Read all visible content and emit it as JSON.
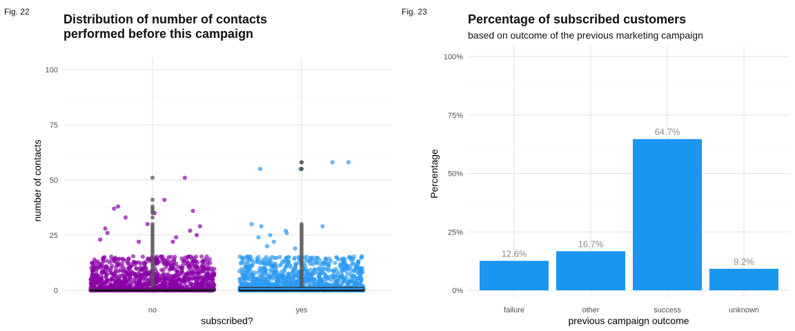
{
  "figures": [
    {
      "label": "Fig. 22",
      "title_line1": "Distribution of number of contacts",
      "title_line2": "performed before this campaign"
    },
    {
      "label": "Fig. 23",
      "title": "Percentage of subscribed customers",
      "subtitle": "based on outcome of the previous marketing campaign"
    }
  ],
  "colors": {
    "no": "#8a00a8",
    "yes": "#2b9af3",
    "bar": "#1896f0",
    "box_outline": "#333333",
    "outlier": "#555555"
  },
  "chart_data": [
    {
      "type": "scatter",
      "subtype": "jitter-with-boxplot",
      "xlabel": "subscribed?",
      "ylabel": "number of contacts",
      "categories": [
        "no",
        "yes"
      ],
      "ylim": [
        0,
        105
      ],
      "yticks": [
        0,
        25,
        50,
        75,
        100
      ],
      "grid": true,
      "series": [
        {
          "category": "no",
          "median": 0,
          "q1": 0,
          "q3": 0,
          "approx_max": 51,
          "notable_points": [
            51,
            41,
            38,
            37,
            36,
            35,
            33,
            30,
            29,
            28,
            27,
            26,
            25,
            24,
            23,
            22,
            22
          ]
        },
        {
          "category": "yes",
          "median": 0,
          "q1": 0,
          "q3": 1,
          "approx_max": 58,
          "notable_points": [
            58,
            58,
            55,
            55,
            30,
            29,
            29,
            27,
            26,
            25,
            24,
            22,
            20,
            19
          ]
        }
      ]
    },
    {
      "type": "bar",
      "xlabel": "previous campaign outcome",
      "ylabel": "Percentage",
      "categories": [
        "failure",
        "other",
        "success",
        "unknown"
      ],
      "values": [
        12.6,
        16.7,
        64.7,
        9.2
      ],
      "value_labels": [
        "12.6%",
        "16.7%",
        "64.7%",
        "9.2%"
      ],
      "ylim": [
        0,
        100
      ],
      "yticks": [
        0,
        25,
        50,
        75,
        100
      ],
      "ytick_labels": [
        "0%",
        "25%",
        "50%",
        "75%",
        "100%"
      ],
      "grid": true
    }
  ]
}
